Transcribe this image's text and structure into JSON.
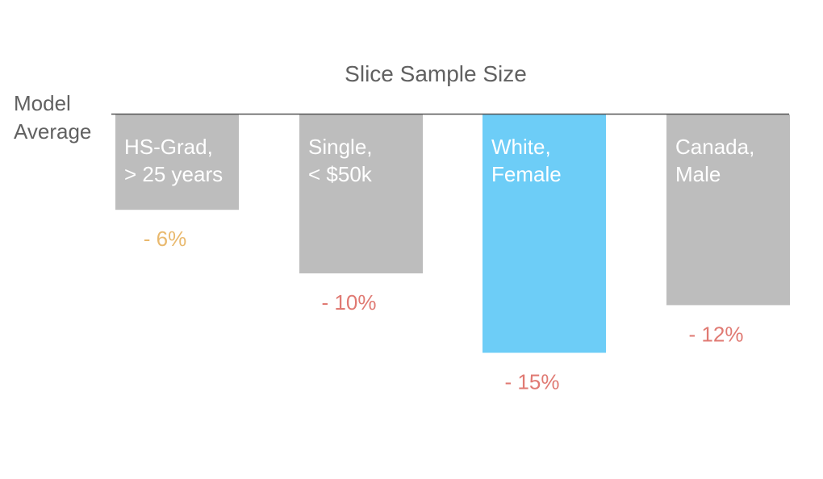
{
  "chart_data": {
    "type": "bar",
    "title": "Slice Sample Size",
    "baseline_label": [
      "Model",
      "Average"
    ],
    "categories": [
      [
        "HS-Grad,",
        "> 25 years"
      ],
      [
        "Single,",
        "< $50k"
      ],
      [
        "White,",
        "Female"
      ],
      [
        "Canada,",
        "Male"
      ]
    ],
    "values": [
      -6,
      -10,
      -15,
      -12
    ],
    "value_labels": [
      "- 6%",
      "- 10%",
      "- 15%",
      "- 12%"
    ],
    "highlight_index": 2,
    "ylim": [
      -20,
      0
    ],
    "grid": false,
    "legend": "none"
  },
  "colors": {
    "bar_default": "#bdbdbd",
    "bar_highlight": "#6dcdf7",
    "category_text": "#ffffff",
    "label_warning": "#e9b96e",
    "label_negative": "#e07a73",
    "axis_line": "#555555",
    "title_text": "#616161"
  }
}
